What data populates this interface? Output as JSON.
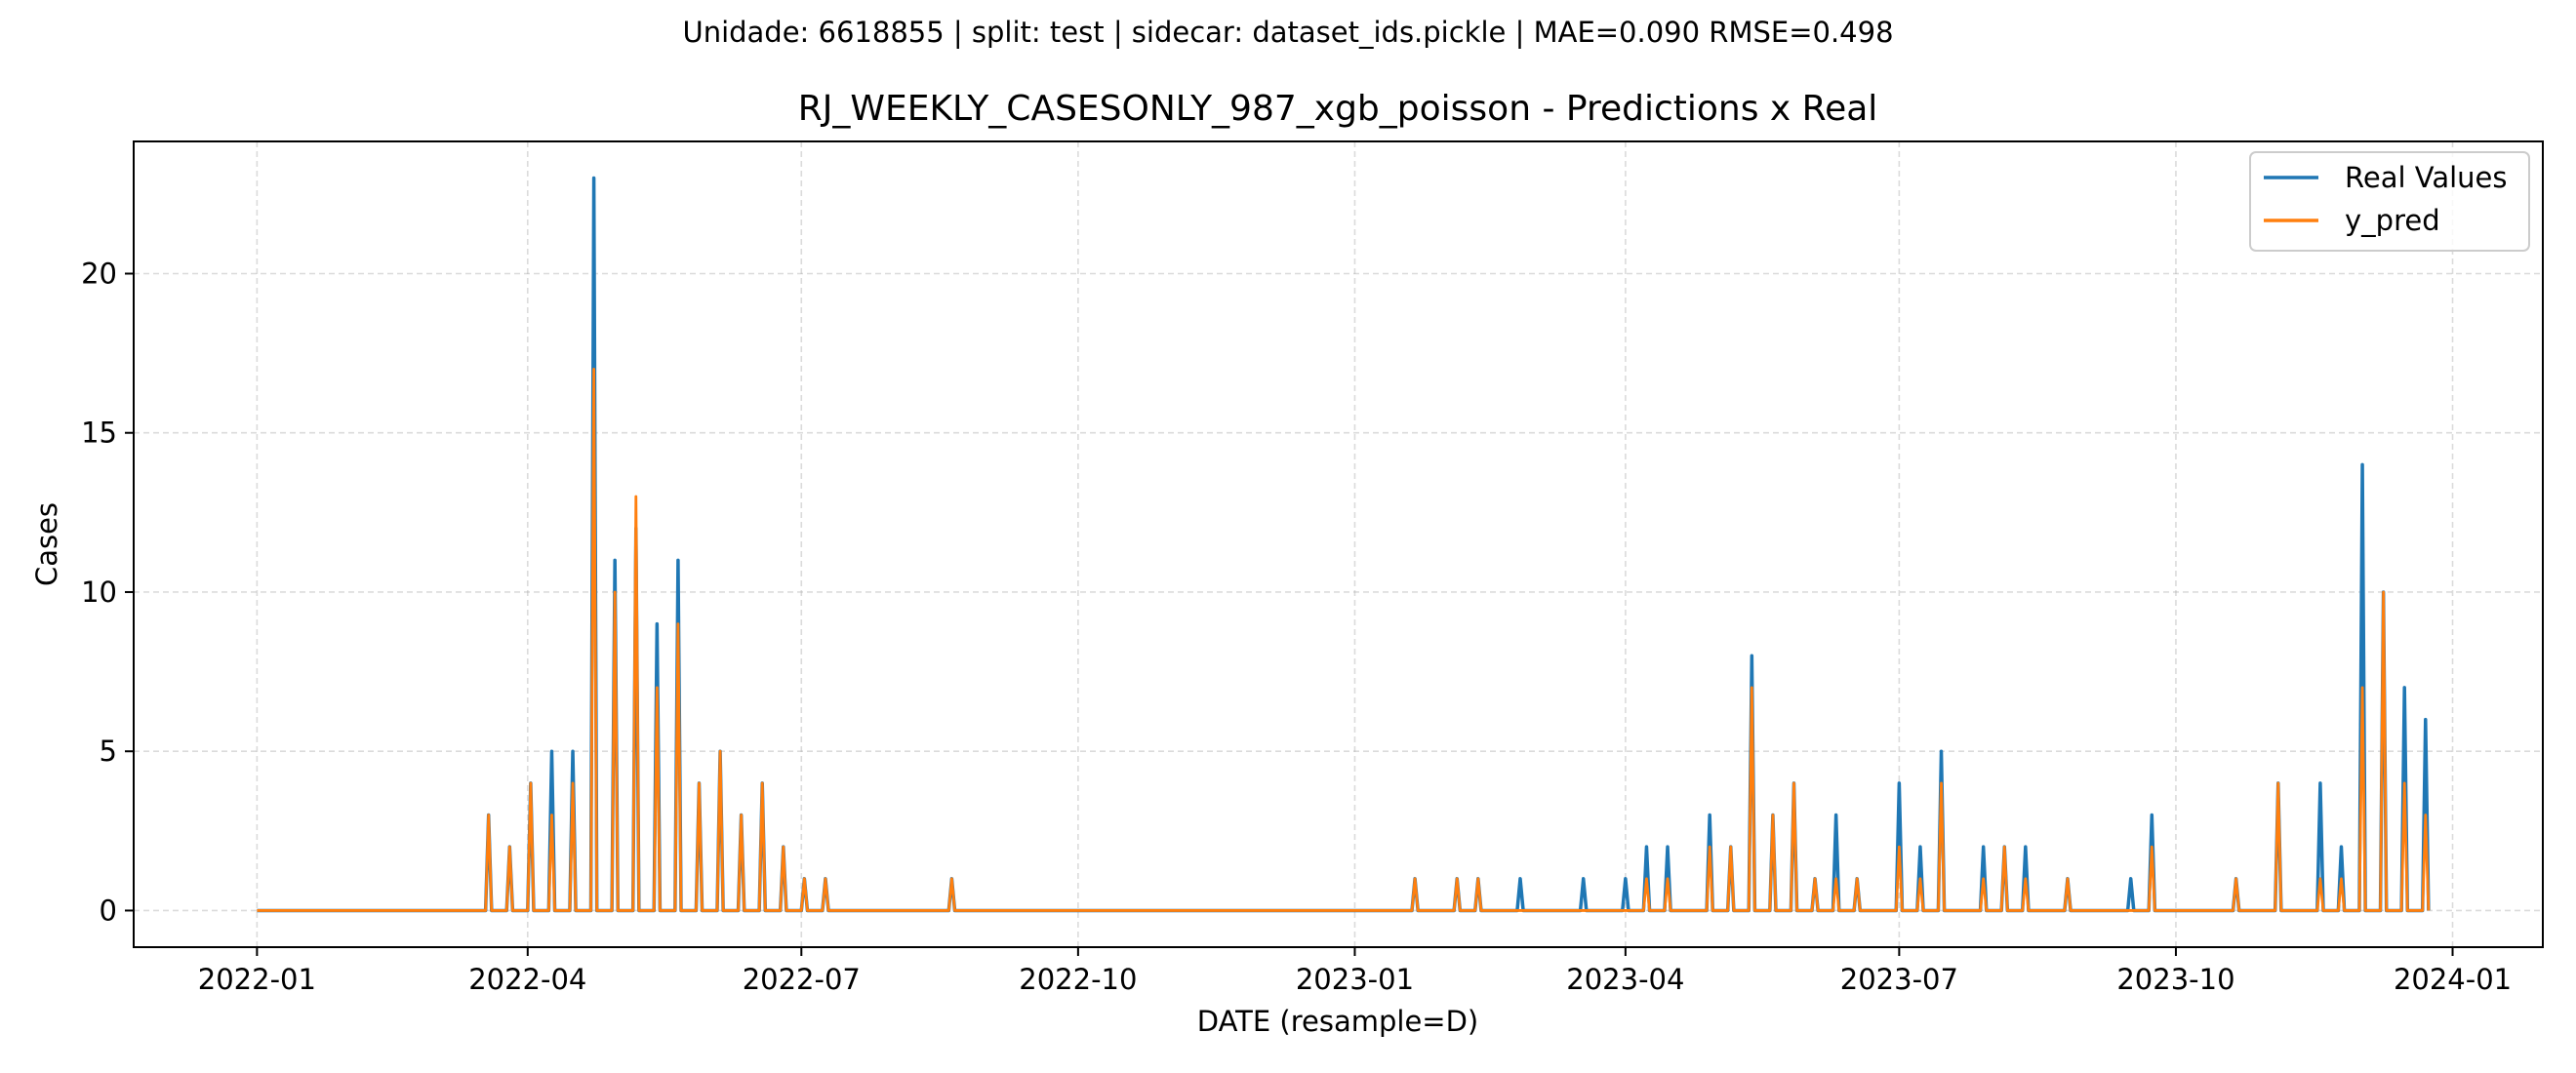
{
  "suptitle": "Unidade: 6618855 | split: test | sidecar: dataset_ids.pickle | MAE=0.090  RMSE=0.498",
  "chart_data": {
    "type": "line",
    "title": "RJ_WEEKLY_CASESONLY_987_xgb_poisson - Predictions x Real",
    "xlabel": "DATE (resample=D)",
    "ylabel": "Cases",
    "xlim": [
      "2021-11-21",
      "2024-01-31"
    ],
    "ylim": [
      -1.15,
      24.15
    ],
    "x_ticks": [
      "2022-01",
      "2022-04",
      "2022-07",
      "2022-10",
      "2023-01",
      "2023-04",
      "2023-07",
      "2023-10",
      "2024-01"
    ],
    "y_ticks": [
      0,
      5,
      10,
      15,
      20
    ],
    "grid": true,
    "legend_position": "top-right",
    "x_start": "2022-01-01",
    "x_end": "2023-12-24",
    "baseline_value": 0,
    "series": [
      {
        "name": "Real Values",
        "color": "#1f77b4",
        "spikes": [
          [
            "2022-03-19",
            3
          ],
          [
            "2022-03-26",
            2
          ],
          [
            "2022-04-02",
            4
          ],
          [
            "2022-04-09",
            5
          ],
          [
            "2022-04-16",
            5
          ],
          [
            "2022-04-23",
            23
          ],
          [
            "2022-04-30",
            11
          ],
          [
            "2022-05-07",
            12
          ],
          [
            "2022-05-14",
            9
          ],
          [
            "2022-05-21",
            11
          ],
          [
            "2022-05-28",
            4
          ],
          [
            "2022-06-04",
            5
          ],
          [
            "2022-06-11",
            3
          ],
          [
            "2022-06-18",
            4
          ],
          [
            "2022-06-25",
            2
          ],
          [
            "2022-07-02",
            1
          ],
          [
            "2022-07-09",
            1
          ],
          [
            "2022-08-20",
            1
          ],
          [
            "2023-01-21",
            1
          ],
          [
            "2023-02-04",
            1
          ],
          [
            "2023-02-11",
            1
          ],
          [
            "2023-02-25",
            1
          ],
          [
            "2023-03-18",
            1
          ],
          [
            "2023-04-01",
            1
          ],
          [
            "2023-04-08",
            2
          ],
          [
            "2023-04-15",
            2
          ],
          [
            "2023-04-29",
            3
          ],
          [
            "2023-05-06",
            2
          ],
          [
            "2023-05-13",
            8
          ],
          [
            "2023-05-20",
            3
          ],
          [
            "2023-05-27",
            4
          ],
          [
            "2023-06-03",
            1
          ],
          [
            "2023-06-10",
            3
          ],
          [
            "2023-06-17",
            1
          ],
          [
            "2023-07-01",
            4
          ],
          [
            "2023-07-08",
            2
          ],
          [
            "2023-07-15",
            5
          ],
          [
            "2023-07-29",
            2
          ],
          [
            "2023-08-05",
            2
          ],
          [
            "2023-08-12",
            2
          ],
          [
            "2023-08-26",
            1
          ],
          [
            "2023-09-16",
            1
          ],
          [
            "2023-09-23",
            3
          ],
          [
            "2023-10-21",
            1
          ],
          [
            "2023-11-04",
            4
          ],
          [
            "2023-11-18",
            4
          ],
          [
            "2023-11-25",
            2
          ],
          [
            "2023-12-02",
            14
          ],
          [
            "2023-12-09",
            10
          ],
          [
            "2023-12-16",
            7
          ],
          [
            "2023-12-23",
            6
          ]
        ]
      },
      {
        "name": "y_pred",
        "color": "#ff7f0e",
        "spikes": [
          [
            "2022-03-19",
            3
          ],
          [
            "2022-03-26",
            2
          ],
          [
            "2022-04-02",
            4
          ],
          [
            "2022-04-09",
            3
          ],
          [
            "2022-04-16",
            4
          ],
          [
            "2022-04-23",
            17
          ],
          [
            "2022-04-30",
            10
          ],
          [
            "2022-05-07",
            13
          ],
          [
            "2022-05-14",
            7
          ],
          [
            "2022-05-21",
            9
          ],
          [
            "2022-05-28",
            4
          ],
          [
            "2022-06-04",
            5
          ],
          [
            "2022-06-11",
            3
          ],
          [
            "2022-06-18",
            4
          ],
          [
            "2022-06-25",
            2
          ],
          [
            "2022-07-02",
            1
          ],
          [
            "2022-07-09",
            1
          ],
          [
            "2022-08-20",
            1
          ],
          [
            "2023-01-21",
            1
          ],
          [
            "2023-02-04",
            1
          ],
          [
            "2023-02-11",
            1
          ],
          [
            "2023-04-08",
            1
          ],
          [
            "2023-04-15",
            1
          ],
          [
            "2023-04-29",
            2
          ],
          [
            "2023-05-06",
            2
          ],
          [
            "2023-05-13",
            7
          ],
          [
            "2023-05-20",
            3
          ],
          [
            "2023-05-27",
            4
          ],
          [
            "2023-06-03",
            1
          ],
          [
            "2023-06-10",
            1
          ],
          [
            "2023-06-17",
            1
          ],
          [
            "2023-07-01",
            2
          ],
          [
            "2023-07-08",
            1
          ],
          [
            "2023-07-15",
            4
          ],
          [
            "2023-07-29",
            1
          ],
          [
            "2023-08-05",
            2
          ],
          [
            "2023-08-12",
            1
          ],
          [
            "2023-08-26",
            1
          ],
          [
            "2023-09-23",
            2
          ],
          [
            "2023-10-21",
            1
          ],
          [
            "2023-11-04",
            4
          ],
          [
            "2023-11-18",
            1
          ],
          [
            "2023-11-25",
            1
          ],
          [
            "2023-12-02",
            7
          ],
          [
            "2023-12-09",
            10
          ],
          [
            "2023-12-16",
            4
          ],
          [
            "2023-12-23",
            3
          ]
        ]
      }
    ]
  }
}
